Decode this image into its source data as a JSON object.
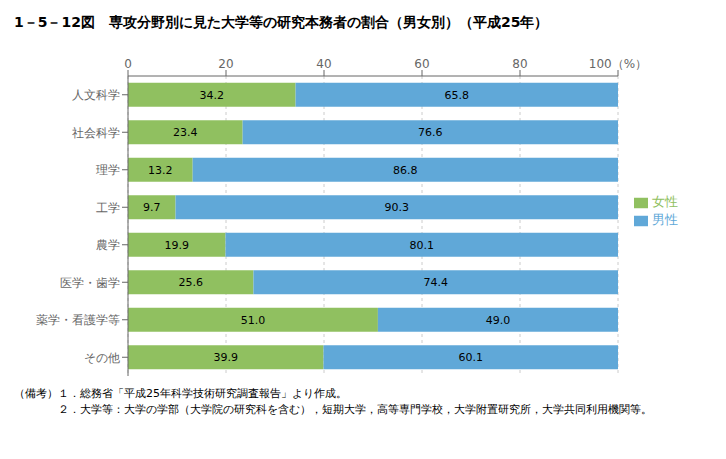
{
  "chart_data": {
    "type": "bar",
    "orientation": "horizontal",
    "stacked": true,
    "title": "1－5－12図　専攻分野別に見た大学等の研究本務者の割合（男女別）（平成25年）",
    "categories": [
      "人文科学",
      "社会科学",
      "理学",
      "工学",
      "農学",
      "医学・歯学",
      "薬学・看護学等",
      "その他"
    ],
    "series": [
      {
        "name": "女性",
        "color": "#90c060",
        "values": [
          34.2,
          23.4,
          13.2,
          9.7,
          19.9,
          25.6,
          51.0,
          39.9
        ],
        "value_labels": [
          "34.2",
          "23.4",
          "13.2",
          "9.7",
          "19.9",
          "25.6",
          "51.0",
          "39.9"
        ]
      },
      {
        "name": "男性",
        "color": "#60a8d8",
        "values": [
          65.8,
          76.6,
          86.8,
          90.3,
          80.1,
          74.4,
          49.0,
          60.1
        ],
        "value_labels": [
          "65.8",
          "76.6",
          "86.8",
          "90.3",
          "80.1",
          "74.4",
          "49.0",
          "60.1"
        ]
      }
    ],
    "xlim": [
      0,
      100
    ],
    "xticks": [
      0,
      20,
      40,
      60,
      80,
      {
        "value": 100,
        "label": "100（%）"
      }
    ],
    "grid": true,
    "legend": "right",
    "data_labels": true,
    "annotations": [
      "（備考）１．総務省「平成25年科学技術研究調査報告」より作成。",
      "　　　　２．大学等：大学の学部（大学院の研究科を含む），短期大学，高等専門学校，大学附置研究所，大学共同利用機関等。"
    ]
  }
}
